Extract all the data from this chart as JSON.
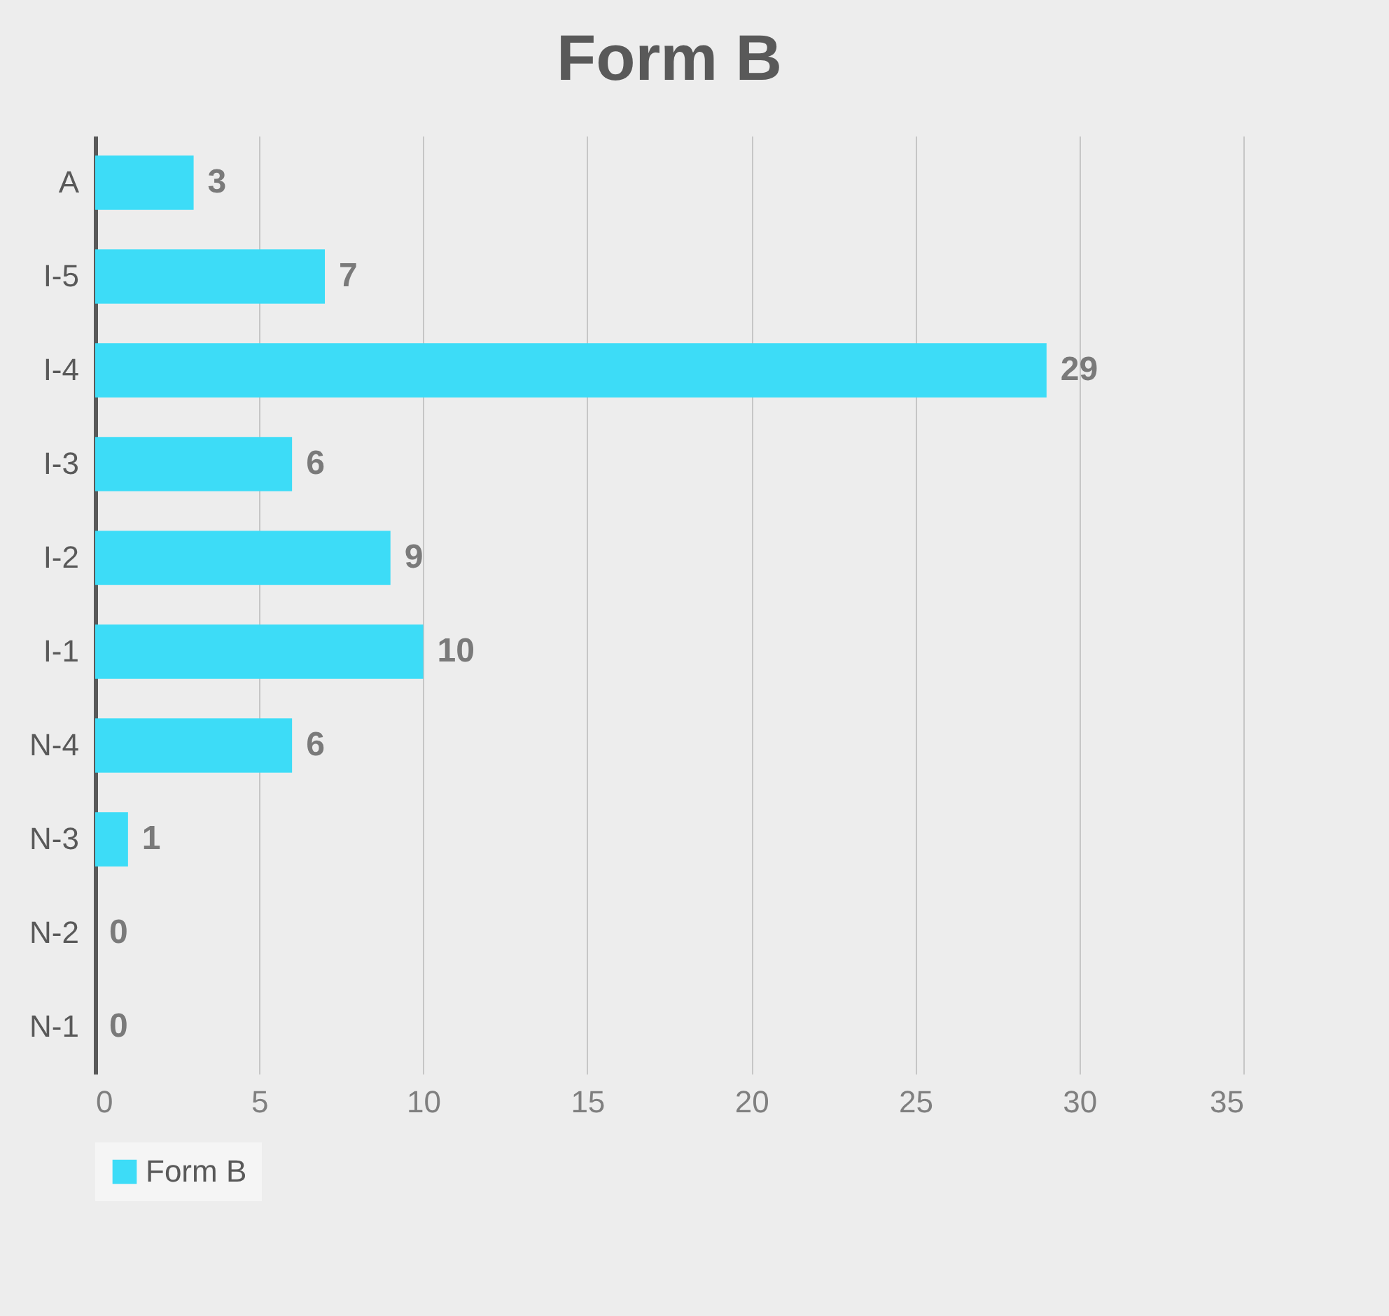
{
  "chart_data": {
    "type": "bar",
    "title": "Form B",
    "orientation": "horizontal",
    "categories": [
      "A",
      "I-5",
      "I-4",
      "I-3",
      "I-2",
      "I-1",
      "N-4",
      "N-3",
      "N-2",
      "N-1"
    ],
    "series": [
      {
        "name": "Form B",
        "color": "#3ddcf7",
        "values": [
          3,
          7,
          29,
          6,
          9,
          10,
          6,
          1,
          0,
          0
        ]
      }
    ],
    "xlim": [
      0,
      35
    ],
    "xticks": [
      0,
      5,
      10,
      15,
      20,
      25,
      30,
      35
    ],
    "grid": "x",
    "legend": "bottom",
    "data_labels": true
  }
}
